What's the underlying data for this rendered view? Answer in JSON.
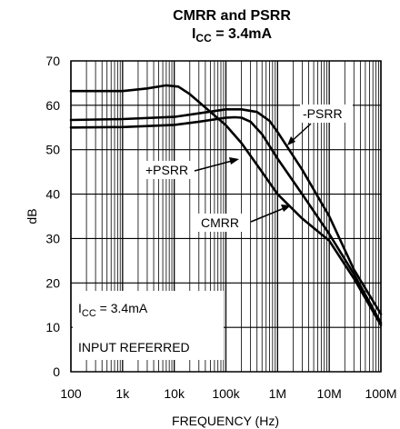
{
  "chart_data": {
    "type": "line",
    "title_line1": "CMRR and PSRR",
    "title_line2_main": "I",
    "title_line2_sub": "CC",
    "title_line2_rest": " = 3.4mA",
    "xlabel": "FREQUENCY (Hz)",
    "ylabel": "dB",
    "x_scale": "log",
    "xlim": [
      100,
      100000000
    ],
    "ylim": [
      0,
      70
    ],
    "x_ticks": [
      100,
      1000,
      10000,
      100000,
      1000000,
      10000000,
      100000000
    ],
    "x_tick_labels": [
      "100",
      "1k",
      "10k",
      "100k",
      "1M",
      "10M",
      "100M"
    ],
    "y_ticks": [
      0,
      10,
      20,
      30,
      40,
      50,
      60,
      70
    ],
    "y_tick_labels": [
      "0",
      "10",
      "20",
      "30",
      "40",
      "50",
      "60",
      "70"
    ],
    "grid": true,
    "series": [
      {
        "name": "CMRR",
        "x": [
          100,
          1000,
          3000,
          7000,
          12000,
          20000,
          40000,
          100000,
          200000,
          500000,
          1000000,
          3000000,
          10000000,
          30000000,
          100000000
        ],
        "y": [
          63.2,
          63.2,
          63.8,
          64.5,
          64.2,
          62.5,
          59.5,
          55.5,
          51.5,
          45,
          40,
          34.5,
          29.5,
          21,
          10.5
        ]
      },
      {
        "name": "+PSRR",
        "x": [
          100,
          1000,
          10000,
          30000,
          100000,
          150000,
          200000,
          300000,
          500000,
          1000000,
          3000000,
          10000000,
          30000000,
          100000000
        ],
        "y": [
          55,
          55.1,
          55.6,
          56.3,
          57.2,
          57.3,
          57.2,
          56.3,
          53.5,
          48,
          40,
          31,
          22,
          11
        ]
      },
      {
        "name": "-PSRR",
        "x": [
          100,
          1000,
          10000,
          30000,
          100000,
          200000,
          400000,
          700000,
          1000000,
          3000000,
          10000000,
          30000000,
          100000000
        ],
        "y": [
          56.7,
          56.9,
          57.4,
          58.2,
          59.1,
          59.1,
          58.5,
          56.5,
          54,
          45.5,
          35,
          23,
          13
        ]
      }
    ],
    "annotations": [
      {
        "text": "-PSRR",
        "target": "-PSRR"
      },
      {
        "text": "+PSRR",
        "target": "CMRR"
      },
      {
        "text": "CMRR",
        "target": "+PSRR"
      }
    ],
    "notes": {
      "line1_main": "I",
      "line1_sub": "CC",
      "line1_rest": " = 3.4mA",
      "line2": "INPUT REFERRED"
    },
    "colors": {
      "line": "#000000",
      "grid": "#000000",
      "background": "#ffffff"
    }
  }
}
